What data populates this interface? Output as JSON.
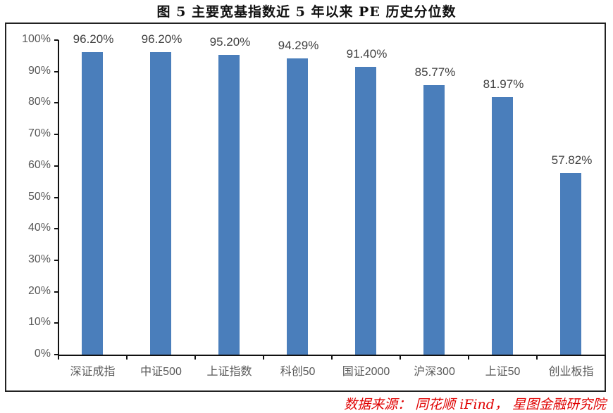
{
  "chart_data": {
    "type": "bar",
    "title": "图 5 主要宽基指数近 5 年以来 PE 历史分位数",
    "categories": [
      "深证成指",
      "中证500",
      "上证指数",
      "科创50",
      "国证2000",
      "沪深300",
      "上证50",
      "创业板指"
    ],
    "values": [
      96.2,
      96.2,
      95.2,
      94.29,
      91.4,
      85.77,
      81.97,
      57.82
    ],
    "value_labels": [
      "96.20%",
      "96.20%",
      "95.20%",
      "94.29%",
      "91.40%",
      "85.77%",
      "81.97%",
      "57.82%"
    ],
    "xlabel": "",
    "ylabel": "",
    "ylim": [
      0,
      100
    ],
    "yticks": [
      "0%",
      "10%",
      "20%",
      "30%",
      "40%",
      "50%",
      "60%",
      "70%",
      "80%",
      "90%",
      "100%"
    ],
    "grid": false,
    "legend": null,
    "bar_color": "#4a7ebb",
    "source": "数据来源：同花顺 iFind，星图金融研究院"
  },
  "title": "图 5 主要宽基指数近 5 年以来 PE 历史分位数",
  "source": "数据来源： 同花顺 iFind， 星图金融研究院"
}
